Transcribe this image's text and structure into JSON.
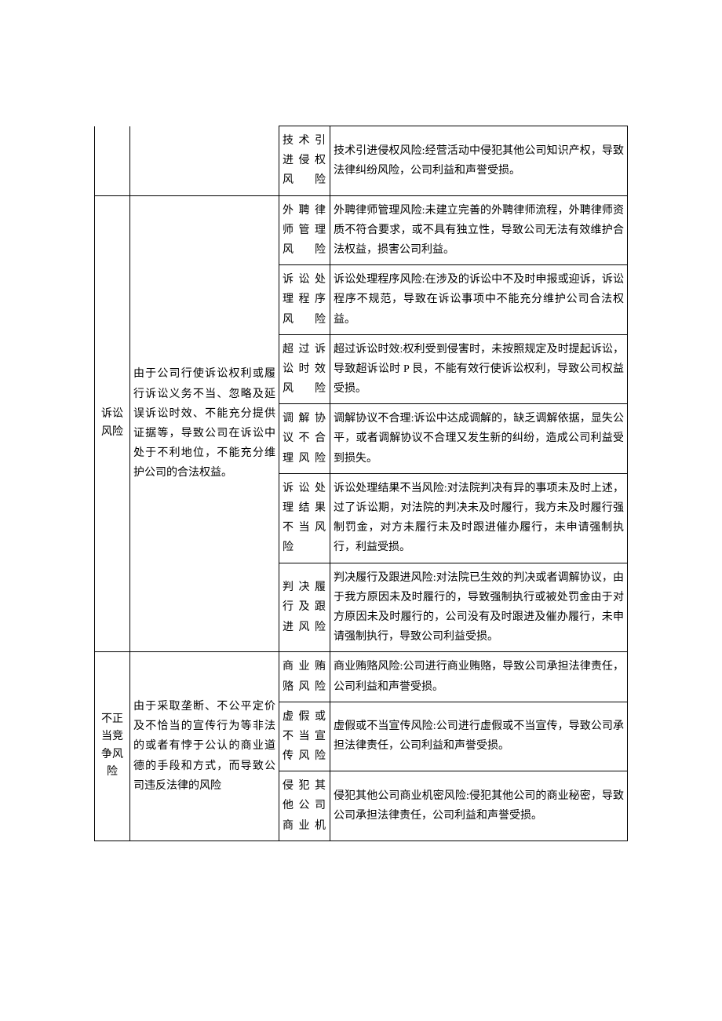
{
  "rows": [
    {
      "col1": "",
      "col2": "",
      "col3": "技术引进侵权风险",
      "col4": "技术引进侵权风险:经营活动中侵犯其他公司知识产权，导致法律纠纷风险，公司利益和声誉受损。"
    },
    {
      "col1": "诉讼风险",
      "col2": "由于公司行使诉讼权利或履行诉讼义务不当、忽略及延误诉讼时效、不能充分提供证据等，导致公司在诉讼中处于不利地位，不能充分维护公司的合法权益。",
      "sub": [
        {
          "col3": "外聘律师管理风险",
          "col4": "外聘律师管理风险:未建立完善的外聘律师流程，外聘律师资质不符合要求，或不具有独立性，导致公司无法有效维护合法权益，损害公司利益。"
        },
        {
          "col3": "诉讼处理程序风险",
          "col4": "诉讼处理程序风险:在涉及的诉讼中不及时申报或迎诉，诉讼程序不规范，导致在诉讼事项中不能充分维护公司合法权益。"
        },
        {
          "col3": "超过诉讼时效风险",
          "col4": "超过诉讼时效:权利受到侵害时，未按照规定及时提起诉讼，导致超诉讼时 P 艮，不能有效行使诉讼权利，导致公司权益受损。"
        },
        {
          "col3": "调解协议不合理风险",
          "col4": "调解协议不合理:诉讼中达成调解的，缺乏调解依据，显失公平，或者调解协议不合理又发生新的纠纷，造成公司利益受到损失。"
        },
        {
          "col3": "诉讼处理结果不当风险",
          "col4": "诉讼处理结果不当风险:对法院判决有异的事项未及时上述，过了诉讼期，对法院的判决未及时履行，我方未及时履行强制罚金，对方未履行未及时跟进催办履行，未申请强制执行，利益受损。"
        },
        {
          "col3": "判决履行及跟进风险",
          "col4": "判决履行及跟进风险:对法院已生效的判决或者调解协议，由于我方原因未及时履行的，导致强制执行或被处罚金由于对方原因未及时履行的，公司没有及时跟进及催办履行，未申请强制执行，导致公司利益受损。"
        }
      ]
    },
    {
      "col1": "不正当竞争风险",
      "col2": "由于采取垄断、不公平定价及不恰当的宣传行为等非法的或者有悖于公认的商业道德的手段和方式，而导致公司违反法律的风险",
      "sub": [
        {
          "col3": "商业贿赂风险",
          "col4": "商业贿赂风险:公司进行商业贿赂，导致公司承担法律责任，公司利益和声誉受损。"
        },
        {
          "col3": "虚假或不当宣传风险",
          "col4": "虚假或不当宣传风险:公司进行虚假或不当宣传，导致公司承担法律责任，公司利益和声誉受损。"
        },
        {
          "col3": "侵犯其他公司商业机",
          "col4": "侵犯其他公司商业机密风险:侵犯其他公司的商业秘密，导致公司承担法律责任，公司利益和声誉受损。"
        }
      ]
    }
  ]
}
